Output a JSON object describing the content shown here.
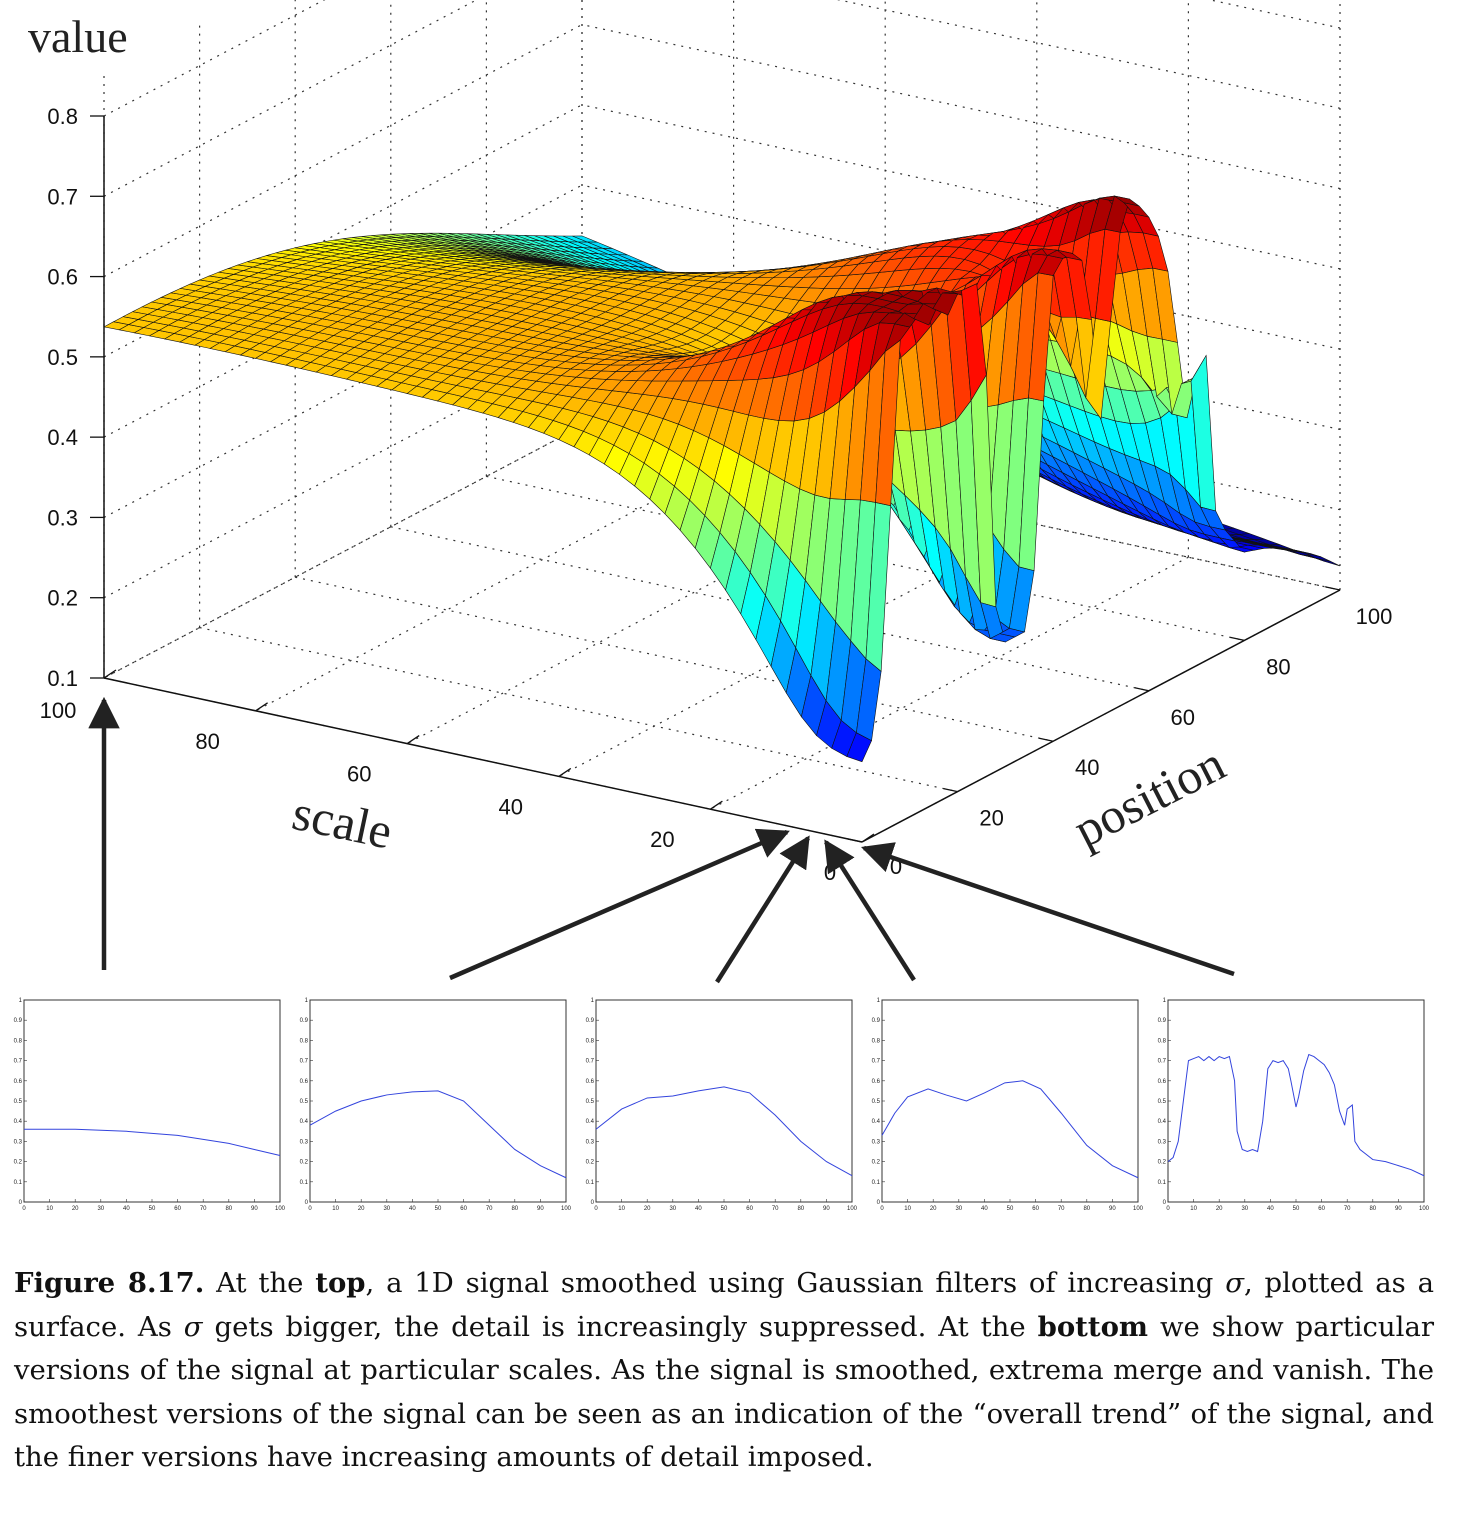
{
  "surface_plot": {
    "z_label": "value",
    "x_label": "scale",
    "y_label": "position",
    "z_ticks": [
      "0.8",
      "0.7",
      "0.6",
      "0.5",
      "0.4",
      "0.3",
      "0.2",
      "0.1"
    ],
    "scale_ticks": [
      "100",
      "80",
      "60",
      "40",
      "20",
      "0"
    ],
    "position_ticks": [
      "0",
      "20",
      "40",
      "60",
      "80",
      "100"
    ]
  },
  "chart_data": [
    {
      "type": "line",
      "x": [
        0,
        10,
        20,
        30,
        40,
        50,
        60,
        70,
        80,
        90,
        100
      ],
      "series": [
        {
          "values": [
            0.36,
            0.36,
            0.36,
            0.355,
            0.35,
            0.34,
            0.33,
            0.31,
            0.29,
            0.26,
            0.23
          ]
        }
      ],
      "xlim": [
        0,
        100
      ],
      "ylim": [
        0,
        1
      ],
      "xticks": [
        "0",
        "10",
        "20",
        "30",
        "40",
        "50",
        "60",
        "70",
        "80",
        "90",
        "100"
      ],
      "yticks": [
        "0",
        "0.1",
        "0.2",
        "0.3",
        "0.4",
        "0.5",
        "0.6",
        "0.7",
        "0.8",
        "0.9",
        "1"
      ]
    },
    {
      "type": "line",
      "x": [
        0,
        10,
        20,
        30,
        40,
        50,
        60,
        70,
        80,
        90,
        100
      ],
      "series": [
        {
          "values": [
            0.38,
            0.45,
            0.5,
            0.53,
            0.545,
            0.55,
            0.5,
            0.38,
            0.26,
            0.18,
            0.12
          ]
        }
      ],
      "xlim": [
        0,
        100
      ],
      "ylim": [
        0,
        1
      ],
      "xticks": [
        "0",
        "10",
        "20",
        "30",
        "40",
        "50",
        "60",
        "70",
        "80",
        "90",
        "100"
      ],
      "yticks": [
        "0",
        "0.1",
        "0.2",
        "0.3",
        "0.4",
        "0.5",
        "0.6",
        "0.7",
        "0.8",
        "0.9",
        "1"
      ]
    },
    {
      "type": "line",
      "x": [
        0,
        10,
        20,
        30,
        40,
        50,
        60,
        70,
        80,
        90,
        100
      ],
      "series": [
        {
          "values": [
            0.36,
            0.46,
            0.515,
            0.525,
            0.55,
            0.57,
            0.54,
            0.43,
            0.3,
            0.2,
            0.13
          ]
        }
      ],
      "xlim": [
        0,
        100
      ],
      "ylim": [
        0,
        1
      ],
      "xticks": [
        "0",
        "10",
        "20",
        "30",
        "40",
        "50",
        "60",
        "70",
        "80",
        "90",
        "100"
      ],
      "yticks": [
        "0",
        "0.1",
        "0.2",
        "0.3",
        "0.4",
        "0.5",
        "0.6",
        "0.7",
        "0.8",
        "0.9",
        "1"
      ]
    },
    {
      "type": "line",
      "x": [
        0,
        5,
        10,
        18,
        25,
        33,
        40,
        48,
        55,
        62,
        70,
        80,
        90,
        100
      ],
      "series": [
        {
          "values": [
            0.33,
            0.44,
            0.52,
            0.56,
            0.53,
            0.5,
            0.54,
            0.59,
            0.6,
            0.56,
            0.44,
            0.28,
            0.18,
            0.12
          ]
        }
      ],
      "xlim": [
        0,
        100
      ],
      "ylim": [
        0,
        1
      ],
      "xticks": [
        "0",
        "10",
        "20",
        "30",
        "40",
        "50",
        "60",
        "70",
        "80",
        "90",
        "100"
      ],
      "yticks": [
        "0",
        "0.1",
        "0.2",
        "0.3",
        "0.4",
        "0.5",
        "0.6",
        "0.7",
        "0.8",
        "0.9",
        "1"
      ]
    },
    {
      "type": "line",
      "x": [
        0,
        2,
        4,
        6,
        8,
        10,
        12,
        14,
        16,
        18,
        20,
        22,
        24,
        26,
        27,
        29,
        31,
        33,
        35,
        37,
        39,
        41,
        43,
        45,
        47,
        48,
        50,
        51,
        53,
        55,
        57,
        59,
        61,
        63,
        65,
        67,
        69,
        70,
        72,
        73,
        75,
        77,
        80,
        85,
        90,
        95,
        100
      ],
      "series": [
        {
          "values": [
            0.2,
            0.22,
            0.3,
            0.5,
            0.7,
            0.71,
            0.72,
            0.7,
            0.72,
            0.7,
            0.72,
            0.71,
            0.72,
            0.6,
            0.35,
            0.26,
            0.25,
            0.26,
            0.25,
            0.4,
            0.66,
            0.7,
            0.69,
            0.7,
            0.66,
            0.6,
            0.47,
            0.52,
            0.65,
            0.73,
            0.72,
            0.7,
            0.68,
            0.64,
            0.58,
            0.45,
            0.38,
            0.46,
            0.48,
            0.3,
            0.26,
            0.24,
            0.21,
            0.2,
            0.18,
            0.16,
            0.13
          ]
        }
      ],
      "xlim": [
        0,
        100
      ],
      "ylim": [
        0,
        1
      ],
      "xticks": [
        "0",
        "10",
        "20",
        "30",
        "40",
        "50",
        "60",
        "70",
        "80",
        "90",
        "100"
      ],
      "yticks": [
        "0",
        "0.1",
        "0.2",
        "0.3",
        "0.4",
        "0.5",
        "0.6",
        "0.7",
        "0.8",
        "0.9",
        "1"
      ]
    }
  ],
  "caption": {
    "label": "Figure 8.17.",
    "t1": " At the ",
    "top_word": "top",
    "t2": ", a 1D signal smoothed using Gaussian filters of increasing ",
    "sigma1": "σ",
    "t3": ", plotted as a surface. As ",
    "sigma2": "σ",
    "t4": " gets bigger, the detail is increasingly suppressed. At the ",
    "bottom_word": "bottom",
    "t5": " we show particular versions of the signal at particular scales. As the signal is smoothed, extrema merge and vanish. The smoothest versions of the signal can be seen as an indication of the “overall trend” of the signal, and the finer versions have increasing amounts of detail imposed."
  }
}
